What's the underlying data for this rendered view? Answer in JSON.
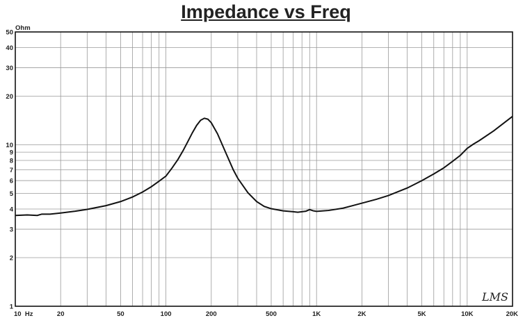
{
  "chart_data": {
    "type": "line",
    "title": "Impedance vs Freq",
    "ylabel": "Ohm",
    "xlabel": "",
    "x_scale": "log",
    "y_scale": "log",
    "xlim": [
      10,
      20000
    ],
    "ylim": [
      1,
      50
    ],
    "grid": true,
    "legend": "none",
    "x_tick_labels": [
      {
        "value": 10,
        "label": "10  Hz"
      },
      {
        "value": 20,
        "label": "20"
      },
      {
        "value": 50,
        "label": "50"
      },
      {
        "value": 100,
        "label": "100"
      },
      {
        "value": 200,
        "label": "200"
      },
      {
        "value": 500,
        "label": "500"
      },
      {
        "value": 1000,
        "label": "1K"
      },
      {
        "value": 2000,
        "label": "2K"
      },
      {
        "value": 5000,
        "label": "5K"
      },
      {
        "value": 10000,
        "label": "10K"
      },
      {
        "value": 20000,
        "label": "20K"
      }
    ],
    "y_tick_labels": [
      {
        "value": 1,
        "label": "1"
      },
      {
        "value": 2,
        "label": "2"
      },
      {
        "value": 3,
        "label": "3"
      },
      {
        "value": 4,
        "label": "4"
      },
      {
        "value": 5,
        "label": "5"
      },
      {
        "value": 6,
        "label": "6"
      },
      {
        "value": 7,
        "label": "7"
      },
      {
        "value": 8,
        "label": "8"
      },
      {
        "value": 9,
        "label": "9"
      },
      {
        "value": 10,
        "label": "10"
      },
      {
        "value": 20,
        "label": "20"
      },
      {
        "value": 30,
        "label": "30"
      },
      {
        "value": 40,
        "label": "40"
      },
      {
        "value": 50,
        "label": "50"
      }
    ],
    "series": [
      {
        "points": [
          [
            10,
            3.65
          ],
          [
            12,
            3.68
          ],
          [
            14,
            3.65
          ],
          [
            15,
            3.72
          ],
          [
            17,
            3.72
          ],
          [
            20,
            3.78
          ],
          [
            25,
            3.88
          ],
          [
            30,
            3.98
          ],
          [
            40,
            4.2
          ],
          [
            50,
            4.45
          ],
          [
            60,
            4.75
          ],
          [
            70,
            5.1
          ],
          [
            80,
            5.5
          ],
          [
            90,
            5.95
          ],
          [
            100,
            6.4
          ],
          [
            110,
            7.2
          ],
          [
            120,
            8.1
          ],
          [
            130,
            9.2
          ],
          [
            140,
            10.5
          ],
          [
            150,
            11.9
          ],
          [
            160,
            13.2
          ],
          [
            170,
            14.2
          ],
          [
            180,
            14.6
          ],
          [
            190,
            14.4
          ],
          [
            200,
            13.7
          ],
          [
            220,
            11.7
          ],
          [
            250,
            8.9
          ],
          [
            280,
            7.0
          ],
          [
            300,
            6.2
          ],
          [
            350,
            5.05
          ],
          [
            400,
            4.45
          ],
          [
            450,
            4.15
          ],
          [
            500,
            4.02
          ],
          [
            600,
            3.9
          ],
          [
            700,
            3.85
          ],
          [
            750,
            3.82
          ],
          [
            800,
            3.85
          ],
          [
            850,
            3.88
          ],
          [
            900,
            3.97
          ],
          [
            950,
            3.9
          ],
          [
            1000,
            3.87
          ],
          [
            1200,
            3.92
          ],
          [
            1500,
            4.05
          ],
          [
            2000,
            4.35
          ],
          [
            2500,
            4.6
          ],
          [
            3000,
            4.85
          ],
          [
            4000,
            5.4
          ],
          [
            5000,
            6.0
          ],
          [
            6000,
            6.6
          ],
          [
            7000,
            7.2
          ],
          [
            8000,
            7.9
          ],
          [
            9000,
            8.6
          ],
          [
            10000,
            9.5
          ],
          [
            11000,
            10.1
          ],
          [
            12000,
            10.6
          ],
          [
            15000,
            12.2
          ],
          [
            20000,
            15.0
          ]
        ]
      }
    ],
    "logo_text": "LMS"
  }
}
